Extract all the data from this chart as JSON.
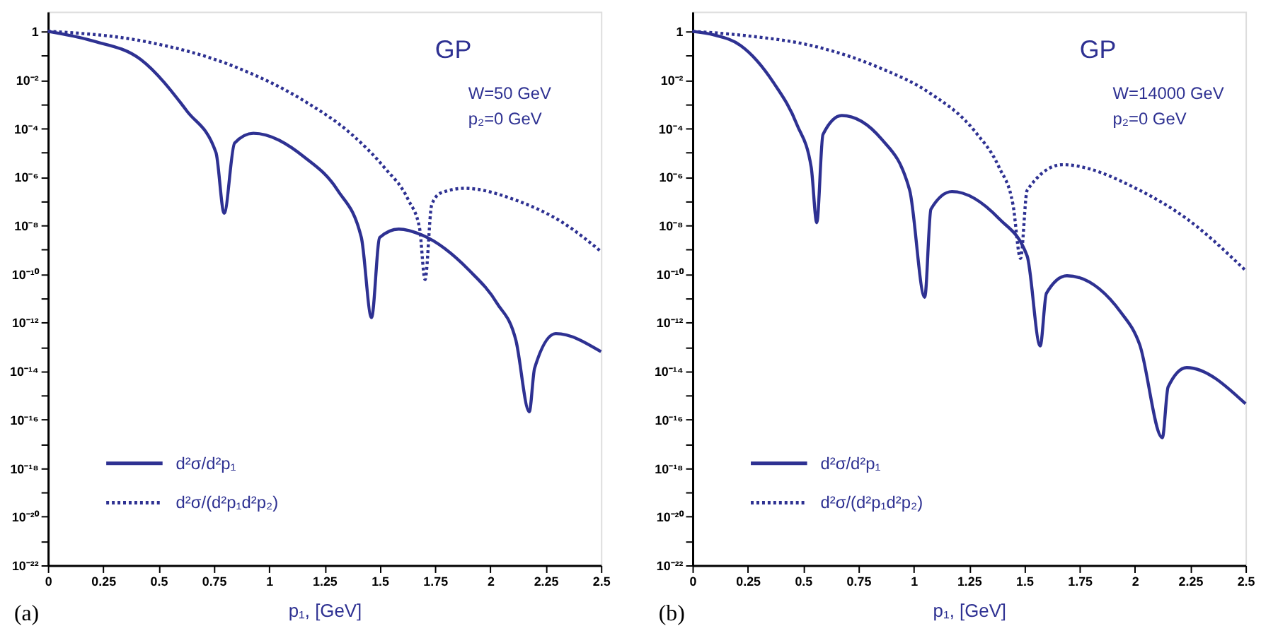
{
  "chart_data": [
    {
      "type": "line",
      "xlabel": "p₁, [GeV]",
      "legend": "bottom left",
      "log": "y",
      "grid": false,
      "xlim": [
        0,
        2.5
      ],
      "xticks": [
        0,
        0.25,
        0.5,
        0.75,
        1,
        1.25,
        1.5,
        1.75,
        2,
        2.25,
        2.5
      ],
      "ylim": [
        1e-22,
        6.5
      ],
      "yticks": [
        {
          "value": 1e-22,
          "label": "10⁻²²"
        },
        {
          "value": 1e-21,
          "label": null
        },
        {
          "value": 1e-20,
          "label": "10⁻²⁰"
        },
        {
          "value": 1e-19,
          "label": null
        },
        {
          "value": 1e-18,
          "label": "10⁻¹⁸"
        },
        {
          "value": 1e-17,
          "label": null
        },
        {
          "value": 1e-16,
          "label": "10⁻¹⁶"
        },
        {
          "value": 1e-15,
          "label": null
        },
        {
          "value": 1e-14,
          "label": "10⁻¹⁴"
        },
        {
          "value": 1e-13,
          "label": null
        },
        {
          "value": 1e-12,
          "label": "10⁻¹²"
        },
        {
          "value": 1e-11,
          "label": null
        },
        {
          "value": 1e-10,
          "label": "10⁻¹⁰"
        },
        {
          "value": 1e-09,
          "label": null
        },
        {
          "value": 1e-08,
          "label": "10⁻⁸"
        },
        {
          "value": 1e-07,
          "label": null
        },
        {
          "value": 1e-06,
          "label": "10⁻⁶"
        },
        {
          "value": 1e-05,
          "label": null
        },
        {
          "value": 0.0001,
          "label": "10⁻⁴"
        },
        {
          "value": 0.001,
          "label": null
        },
        {
          "value": 0.01,
          "label": "10⁻²"
        },
        {
          "value": 0.1,
          "label": null
        },
        1
      ],
      "annotations": [
        "GP",
        "W=50 GeV",
        "p₂=0 GeV",
        "(a)"
      ],
      "series": [
        {
          "name": "d²σ/d²p₁",
          "color": "#2e3192",
          "line_style": "solid",
          "x": [
            0,
            0.2,
            0.42,
            0.63,
            0.76,
            0.797,
            0.844,
            0.929,
            1.162,
            1.31,
            1.417,
            1.463,
            1.5,
            1.586,
            1.692,
            1.905,
            2.03,
            2.116,
            2.176,
            2.2,
            2.296,
            2.5
          ],
          "values": [
            1,
            0.41,
            0.069,
            0.0005,
            1e-05,
            3.2e-08,
            2.5e-05,
            6.3e-05,
            6.3e-06,
            2.8e-07,
            3.2e-09,
            1.6e-12,
            3.2e-09,
            7.1e-09,
            4e-09,
            1.4e-10,
            6.3e-12,
            1.8e-13,
            2.1e-16,
            1.3e-14,
            3.5e-13,
            6.3e-14
          ]
        },
        {
          "name": "d²σ/(d²p₁d²p₂)",
          "color": "#2e3192",
          "line_style": "dotted",
          "x": [
            0,
            0.42,
            0.844,
            1.162,
            1.374,
            1.52,
            1.63,
            1.68,
            1.705,
            1.735,
            1.777,
            1.883,
            2.116,
            2.328,
            2.5
          ],
          "values": [
            1,
            0.41,
            0.035,
            0.0013,
            5.6e-05,
            2.5e-06,
            1.1e-07,
            7.9e-09,
            5.9e-11,
            7.1e-08,
            2.2e-07,
            3.4e-07,
            1.1e-07,
            1.3e-08,
            8.5e-10
          ]
        }
      ]
    },
    {
      "type": "line",
      "xlabel": "p₁, [GeV]",
      "legend": "bottom left",
      "log": "y",
      "grid": false,
      "xlim": [
        0,
        2.5
      ],
      "xticks": [
        0,
        0.25,
        0.5,
        0.75,
        1,
        1.25,
        1.5,
        1.75,
        2,
        2.25,
        2.5
      ],
      "ylim": [
        1e-22,
        6.5
      ],
      "yticks": [
        {
          "value": 1e-22,
          "label": "10⁻²²"
        },
        {
          "value": 1e-21,
          "label": null
        },
        {
          "value": 1e-20,
          "label": "10⁻²⁰"
        },
        {
          "value": 1e-19,
          "label": null
        },
        {
          "value": 1e-18,
          "label": "10⁻¹⁸"
        },
        {
          "value": 1e-17,
          "label": null
        },
        {
          "value": 1e-16,
          "label": "10⁻¹⁶"
        },
        {
          "value": 1e-15,
          "label": null
        },
        {
          "value": 1e-14,
          "label": "10⁻¹⁴"
        },
        {
          "value": 1e-13,
          "label": null
        },
        {
          "value": 1e-12,
          "label": "10⁻¹²"
        },
        {
          "value": 1e-11,
          "label": null
        },
        {
          "value": 1e-10,
          "label": "10⁻¹⁰"
        },
        {
          "value": 1e-09,
          "label": null
        },
        {
          "value": 1e-08,
          "label": "10⁻⁸"
        },
        {
          "value": 1e-07,
          "label": null
        },
        {
          "value": 1e-06,
          "label": "10⁻⁶"
        },
        {
          "value": 1e-05,
          "label": null
        },
        {
          "value": 0.0001,
          "label": "10⁻⁴"
        },
        {
          "value": 0.001,
          "label": null
        },
        {
          "value": 0.01,
          "label": "10⁻²"
        },
        {
          "value": 0.1,
          "label": null
        },
        1
      ],
      "annotations": [
        "GP",
        "W=14000 GeV",
        "p₂=0 GeV",
        "(b)"
      ],
      "series": [
        {
          "name": "d²σ/d²p₁",
          "color": "#2e3192",
          "line_style": "solid",
          "x": [
            0,
            0.1,
            0.218,
            0.367,
            0.473,
            0.537,
            0.562,
            0.59,
            0.675,
            0.855,
            0.982,
            1.05,
            1.078,
            1.173,
            1.386,
            1.513,
            1.572,
            1.6,
            1.693,
            1.937,
            2.022,
            2.124,
            2.15,
            2.234,
            2.5
          ],
          "values": [
            1,
            0.7,
            0.26,
            0.0076,
            0.00014,
            2.5e-06,
            1.3e-08,
            5.6e-05,
            0.00034,
            3.6e-05,
            2.8e-07,
            1.1e-11,
            4.7e-08,
            2.5e-07,
            1.9e-08,
            5.5e-10,
            1.1e-13,
            1.6e-11,
            8.5e-11,
            2.6e-12,
            1.2e-13,
            1.8e-17,
            2.2e-15,
            1.4e-14,
            4.5e-16
          ]
        },
        {
          "name": "d²σ/(d²p₁d²p₂)",
          "color": "#2e3192",
          "line_style": "dotted",
          "x": [
            0,
            0.25,
            0.537,
            0.855,
            1.067,
            1.279,
            1.386,
            1.449,
            1.483,
            1.513,
            1.672,
            2.022,
            2.234,
            2.5
          ],
          "values": [
            1,
            0.65,
            0.26,
            0.029,
            0.0031,
            7.1e-05,
            2.5e-06,
            7.2e-08,
            4.4e-10,
            2.8e-07,
            3.2e-06,
            2.8e-07,
            1.9e-08,
            1.4e-10
          ]
        }
      ]
    }
  ]
}
